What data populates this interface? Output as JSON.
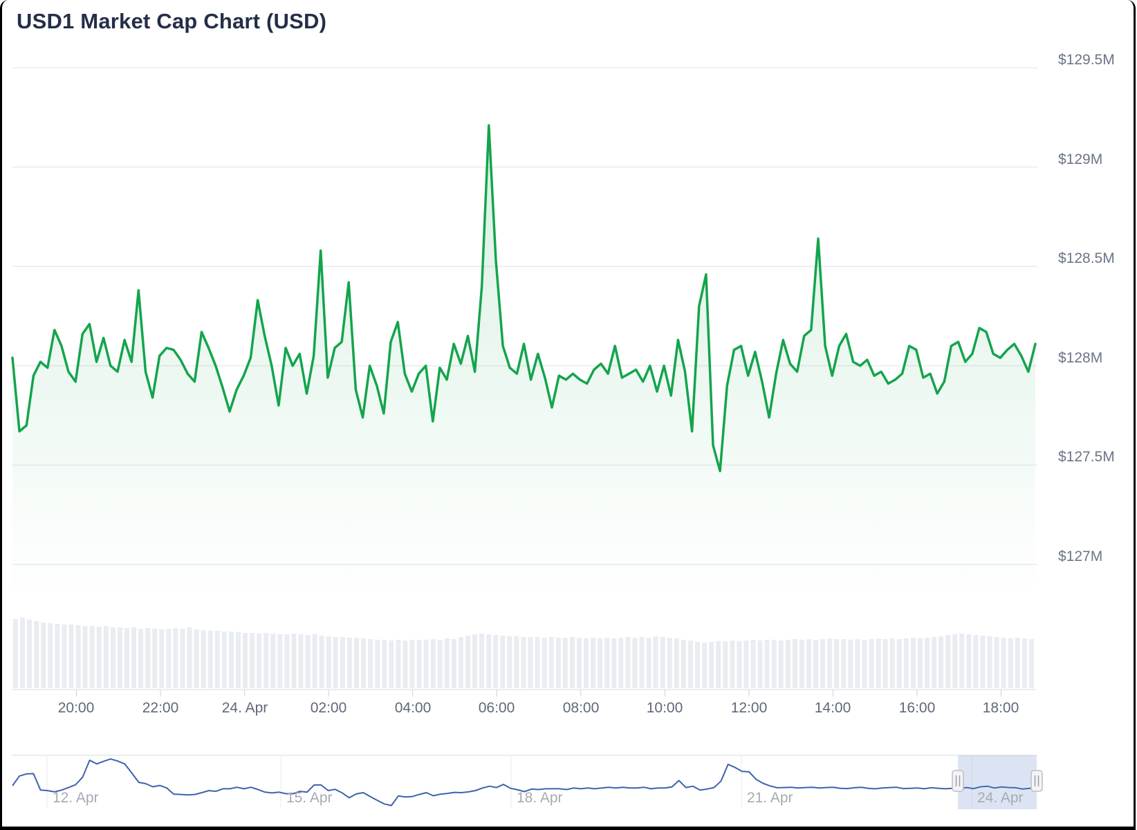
{
  "page": {
    "title": "USD1 Market Cap Chart (USD)"
  },
  "colors": {
    "line": "#14a44d",
    "area_top": "rgba(20,164,77,0.18)",
    "area_bottom": "rgba(20,164,77,0)",
    "volume_bar": "#e9edf2",
    "navigator_line": "#3e62ac",
    "navigator_mask": "rgba(96,130,200,0.22)",
    "gridline": "#e9ebee",
    "axis_line": "#e4e7ea",
    "tick": "#ccd1d9",
    "handle_fill": "#f4f4f5",
    "handle_border": "#b9bec7",
    "handle_grip": "#9aa0ab"
  },
  "chart_data": [
    {
      "name": "market-cap",
      "type": "line",
      "title": "USD1 Market Cap Chart (USD)",
      "unit": "USD millions",
      "x_start": "23. Apr 18:30",
      "x_end": "24. Apr 18:45",
      "interval_minutes": 10,
      "legend": "none",
      "grid": "horizontal",
      "ylim": [
        127.0,
        129.5
      ],
      "y_ticks": [
        "$129.5M",
        "$129M",
        "$128.5M",
        "$128M",
        "$127.5M",
        "$127M"
      ],
      "y_tick_values": [
        129.5,
        129.0,
        128.5,
        128.0,
        127.5,
        127.0
      ],
      "x_ticks": [
        "20:00",
        "22:00",
        "24. Apr",
        "02:00",
        "04:00",
        "06:00",
        "08:00",
        "10:00",
        "12:00",
        "14:00",
        "16:00",
        "18:00"
      ],
      "values_musd": [
        128.04,
        127.67,
        127.7,
        127.95,
        128.02,
        127.99,
        128.18,
        128.1,
        127.97,
        127.92,
        128.16,
        128.21,
        128.02,
        128.14,
        128.0,
        127.97,
        128.13,
        128.02,
        128.38,
        127.97,
        127.84,
        128.05,
        128.09,
        128.08,
        128.03,
        127.96,
        127.92,
        128.17,
        128.09,
        128.0,
        127.89,
        127.77,
        127.88,
        127.95,
        128.04,
        128.33,
        128.15,
        128.0,
        127.8,
        128.09,
        128.0,
        128.06,
        127.86,
        128.05,
        128.58,
        127.94,
        128.09,
        128.12,
        128.42,
        127.88,
        127.74,
        128.0,
        127.9,
        127.76,
        128.12,
        128.22,
        127.96,
        127.87,
        127.96,
        128.0,
        127.72,
        127.99,
        127.93,
        128.11,
        128.01,
        128.15,
        127.97,
        128.4,
        129.21,
        128.53,
        128.1,
        127.99,
        127.96,
        128.11,
        127.93,
        128.06,
        127.94,
        127.79,
        127.95,
        127.93,
        127.96,
        127.93,
        127.91,
        127.98,
        128.01,
        127.96,
        128.1,
        127.94,
        127.96,
        127.98,
        127.92,
        128.0,
        127.87,
        128.0,
        127.85,
        128.13,
        127.97,
        127.67,
        128.3,
        128.46,
        127.6,
        127.47,
        127.9,
        128.08,
        128.1,
        127.95,
        128.07,
        127.92,
        127.74,
        127.96,
        128.13,
        128.01,
        127.97,
        128.15,
        128.18,
        128.64,
        128.1,
        127.95,
        128.1,
        128.16,
        128.02,
        128.0,
        128.03,
        127.95,
        127.97,
        127.91,
        127.93,
        127.96,
        128.1,
        128.08,
        127.94,
        127.96,
        127.86,
        127.92,
        128.1,
        128.12,
        128.02,
        128.06,
        128.19,
        128.17,
        128.06,
        128.04,
        128.08,
        128.11,
        128.05,
        127.97,
        128.11
      ]
    },
    {
      "name": "volume",
      "type": "bar",
      "unit": "relative (no axis shown)",
      "values_relative": [
        100,
        102,
        99,
        97,
        95,
        94,
        93,
        92,
        92,
        91,
        90,
        90,
        89,
        90,
        88,
        88,
        87,
        88,
        86,
        87,
        86,
        85,
        86,
        87,
        86,
        88,
        85,
        84,
        83,
        83,
        82,
        82,
        81,
        80,
        80,
        79,
        80,
        79,
        78,
        78,
        79,
        78,
        77,
        78,
        76,
        75,
        74,
        74,
        73,
        73,
        72,
        71,
        70,
        70,
        69,
        70,
        69,
        70,
        70,
        70,
        71,
        70,
        72,
        71,
        74,
        76,
        78,
        79,
        78,
        77,
        76,
        75,
        75,
        74,
        74,
        74,
        73,
        74,
        73,
        73,
        74,
        73,
        72,
        73,
        72,
        73,
        72,
        73,
        74,
        73,
        74,
        73,
        75,
        74,
        73,
        72,
        70,
        69,
        67,
        66,
        67,
        68,
        68,
        69,
        68,
        69,
        70,
        69,
        70,
        70,
        69,
        70,
        71,
        70,
        71,
        70,
        71,
        72,
        71,
        71,
        70,
        71,
        70,
        71,
        72,
        71,
        72,
        71,
        72,
        73,
        72,
        73,
        74,
        75,
        77,
        78,
        79,
        78,
        77,
        76,
        75,
        74,
        73,
        72,
        73,
        72,
        71
      ]
    },
    {
      "name": "navigator",
      "type": "line",
      "x_start": "11. Apr",
      "x_end": "25. Apr",
      "x_ticks": [
        "12. Apr",
        "15. Apr",
        "18. Apr",
        "21. Apr",
        "24. Apr"
      ],
      "selection": {
        "start_frac": 0.923,
        "end_frac": 1.0
      },
      "values_musd": [
        128.37,
        128.75,
        128.83,
        128.84,
        128.2,
        128.18,
        128.13,
        128.2,
        128.3,
        128.41,
        128.7,
        129.36,
        129.22,
        129.32,
        129.41,
        129.33,
        129.22,
        128.87,
        128.5,
        128.45,
        128.33,
        128.38,
        128.28,
        128.04,
        128.03,
        128.01,
        128.03,
        128.1,
        128.18,
        128.15,
        128.25,
        128.25,
        128.31,
        128.25,
        128.31,
        128.22,
        128.12,
        128.09,
        128.12,
        128.06,
        128.06,
        128.15,
        128.12,
        128.4,
        128.4,
        128.18,
        128.23,
        128.09,
        127.9,
        128.05,
        128.1,
        127.95,
        127.8,
        127.66,
        127.6,
        127.97,
        127.93,
        127.95,
        128.03,
        128.1,
        127.98,
        128.04,
        128.07,
        128.11,
        128.1,
        128.13,
        128.18,
        128.28,
        128.35,
        128.3,
        128.42,
        128.27,
        128.21,
        128.14,
        128.24,
        128.22,
        128.25,
        128.25,
        128.25,
        128.22,
        128.28,
        128.25,
        128.28,
        128.25,
        128.28,
        128.31,
        128.28,
        128.31,
        128.28,
        128.28,
        128.31,
        128.25,
        128.28,
        128.28,
        128.32,
        128.57,
        128.3,
        128.35,
        128.2,
        128.24,
        128.3,
        128.55,
        129.2,
        129.08,
        128.93,
        128.91,
        128.62,
        128.46,
        128.36,
        128.29,
        128.3,
        128.31,
        128.28,
        128.3,
        128.31,
        128.28,
        128.3,
        128.31,
        128.27,
        128.26,
        128.29,
        128.31,
        128.27,
        128.25,
        128.28,
        128.3,
        128.31,
        128.26,
        128.27,
        128.28,
        128.25,
        128.29,
        128.27,
        128.25,
        128.27,
        128.26,
        128.3,
        128.26,
        128.33,
        128.35,
        128.28,
        128.32,
        128.3,
        128.29,
        128.24,
        128.27,
        128.28
      ]
    }
  ]
}
